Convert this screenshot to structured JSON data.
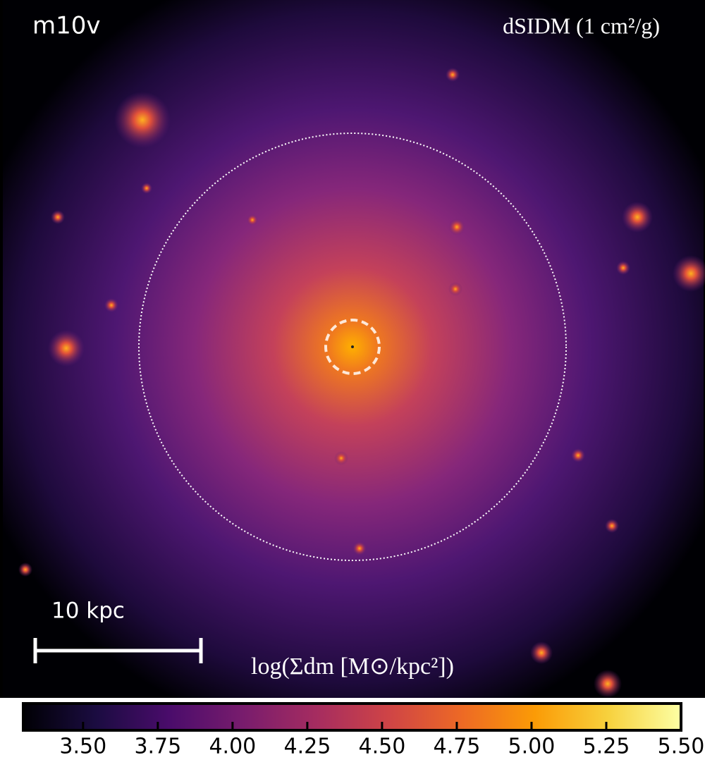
{
  "chart_data": {
    "type": "image-colorbar",
    "title": "m10v",
    "subtitle": "dSIDM (1 cm²/g)",
    "scale_bar_label": "10 kpc",
    "colorbar_label": "log(Σdm [M⊙/kpc²])",
    "colormap": "inferno",
    "clim": [
      3.3,
      5.5
    ],
    "cticks": [
      {
        "value": 3.5,
        "label": "3.50"
      },
      {
        "value": 3.75,
        "label": "3.75"
      },
      {
        "value": 4.0,
        "label": "4.00"
      },
      {
        "value": 4.25,
        "label": "4.25"
      },
      {
        "value": 4.5,
        "label": "4.50"
      },
      {
        "value": 4.75,
        "label": "4.75"
      },
      {
        "value": 5.0,
        "label": "5.00"
      },
      {
        "value": 5.25,
        "label": "5.25"
      },
      {
        "value": 5.5,
        "label": "5.50"
      }
    ]
  }
}
